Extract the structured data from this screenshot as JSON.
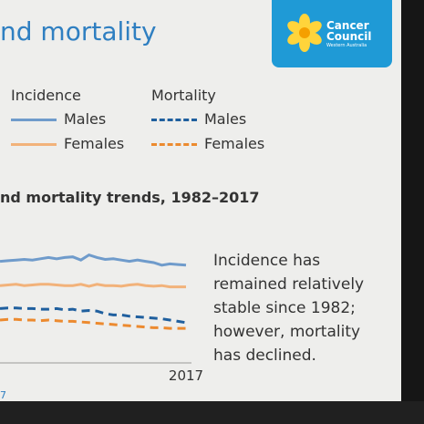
{
  "slide": {
    "title_fragment": "nd mortality",
    "logo": {
      "line1": "Cancer",
      "line2": "Council",
      "line3": "Western Australia"
    },
    "legend": {
      "incidence_header": "Incidence",
      "mortality_header": "Mortality",
      "males": "Males",
      "females": "Females",
      "colors": {
        "incidence_males": "#6f9bcb",
        "incidence_females": "#f2b27a",
        "mortality_males": "#1f5f9e",
        "mortality_females": "#ec8a2f"
      }
    },
    "note_lines": [
      "Incidence has",
      "remained relatively",
      "stable since 1982;",
      "however, mortality",
      "has declined."
    ],
    "footer_fragment": "7"
  },
  "chart_data": {
    "type": "line",
    "title": "nd mortality trends, 1982–2017",
    "xlabel": "",
    "ylabel": "",
    "x_tick_labels": [
      "2017"
    ],
    "x": [
      1994,
      1995,
      1996,
      1997,
      1998,
      1999,
      2000,
      2001,
      2002,
      2003,
      2004,
      2005,
      2006,
      2007,
      2008,
      2009,
      2010,
      2011,
      2012,
      2013,
      2014,
      2015,
      2016,
      2017
    ],
    "series": [
      {
        "group": "Incidence",
        "name": "Males",
        "style": "solid",
        "color": "#6f9bcb",
        "values": [
          81,
          81.5,
          82,
          82.5,
          82,
          83,
          84,
          83,
          84,
          84.5,
          82,
          86,
          84,
          82.5,
          83,
          82,
          81,
          82,
          81,
          80,
          78,
          79,
          78.5,
          78
        ]
      },
      {
        "group": "Incidence",
        "name": "Females",
        "style": "solid",
        "color": "#f2b27a",
        "values": [
          62,
          62.5,
          63,
          62,
          62.5,
          63,
          63,
          62.5,
          62,
          62,
          63,
          61.5,
          63,
          62,
          62,
          61.5,
          62.5,
          63,
          62,
          61.5,
          62,
          61,
          61,
          61
        ]
      },
      {
        "group": "Mortality",
        "name": "Males",
        "style": "dashed",
        "color": "#1f5f9e",
        "values": [
          44,
          44.5,
          44.5,
          44,
          44,
          43.5,
          43.5,
          44,
          43,
          43.5,
          42,
          42.5,
          42,
          40,
          39,
          39,
          38,
          37.5,
          37,
          36.5,
          36,
          35,
          34,
          33
        ]
      },
      {
        "group": "Mortality",
        "name": "Females",
        "style": "dashed",
        "color": "#ec8a2f",
        "values": [
          35,
          35.5,
          35.5,
          35,
          35,
          34.5,
          35,
          34.5,
          34,
          34,
          33.5,
          33,
          32.5,
          32,
          31.5,
          31,
          30.5,
          30,
          29.5,
          29,
          29,
          28.5,
          28.5,
          28.5
        ]
      }
    ],
    "ylim": [
      0,
      100
    ],
    "grid": false,
    "legend_position": "top"
  }
}
